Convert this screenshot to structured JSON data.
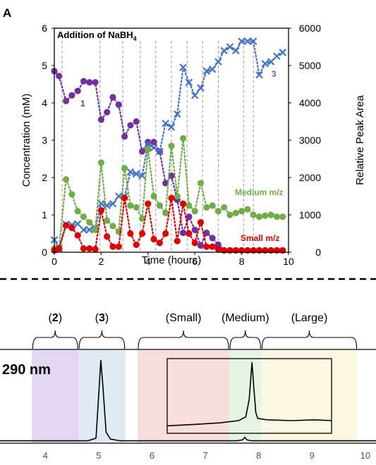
{
  "chart_data": [
    {
      "type": "scatter",
      "panel_label": "A",
      "annotation": "Addition of NaBH",
      "annotation_subscript": "4",
      "xlabel": "Time (hours)",
      "ylabel_left": "Concentration (mM)",
      "ylabel_right": "Relative Peak Area",
      "xlim": [
        0,
        10
      ],
      "ylim_left": [
        0,
        6
      ],
      "ylim_right": [
        0,
        6000
      ],
      "x_ticks": [
        "0",
        "2",
        "4",
        "6",
        "8",
        "10"
      ],
      "y_left_ticks": [
        "0",
        "1",
        "2",
        "3",
        "4",
        "5",
        "6"
      ],
      "y_right_ticks": [
        "0",
        "1000",
        "2000",
        "3000",
        "4000",
        "5000",
        "6000"
      ],
      "additions_x": [
        0.33,
        1.95,
        2.92,
        3.67,
        4.33,
        5.0,
        5.67,
        6.33,
        7.0,
        8.08,
        8.5
      ],
      "series": [
        {
          "label": "1",
          "axis": "left",
          "marker": "circle",
          "color": "#7030A0",
          "x": [
            0,
            0.2,
            0.5,
            0.75,
            1.0,
            1.25,
            1.5,
            1.75,
            2.0,
            2.25,
            2.5,
            2.75,
            3.0,
            3.25,
            3.5,
            3.75,
            4.0,
            4.25,
            4.5,
            4.75,
            5.0,
            5.25,
            5.5,
            5.75,
            6.0,
            6.25,
            6.5,
            6.75,
            7.0,
            7.25,
            7.5,
            7.75,
            8.0,
            8.25,
            8.5,
            8.75,
            9.0,
            9.25,
            9.5,
            9.75
          ],
          "y": [
            4.85,
            4.72,
            4.05,
            4.2,
            4.32,
            4.58,
            4.55,
            4.55,
            3.55,
            3.75,
            4.15,
            3.95,
            3.1,
            3.4,
            3.5,
            2.7,
            2.95,
            2.95,
            2.7,
            1.85,
            2.05,
            1.4,
            0.52,
            0.95,
            0.6,
            0.18,
            0.52,
            0.38,
            0.2,
            0.05,
            0.05,
            0.05,
            0.05,
            0.05,
            0.05,
            0.05,
            0.05,
            0.05,
            0.05,
            0.05
          ]
        },
        {
          "label": "3",
          "axis": "right",
          "marker": "x",
          "color": "#4472C4",
          "x": [
            0,
            0.2,
            0.5,
            0.75,
            1.0,
            1.25,
            1.5,
            1.75,
            2.0,
            2.25,
            2.5,
            2.75,
            3.0,
            3.25,
            3.5,
            3.75,
            4.0,
            4.25,
            4.5,
            4.75,
            5.0,
            5.25,
            5.5,
            5.75,
            6.0,
            6.25,
            6.5,
            6.75,
            7.0,
            7.25,
            7.5,
            7.75,
            8.0,
            8.25,
            8.5,
            8.75,
            9.0,
            9.25,
            9.5,
            9.75
          ],
          "y": [
            330,
            100,
            750,
            730,
            760,
            600,
            600,
            650,
            1300,
            1250,
            1300,
            1500,
            1500,
            2150,
            2100,
            2050,
            2900,
            2800,
            2700,
            3450,
            3350,
            3700,
            4950,
            4550,
            4200,
            4400,
            4850,
            4900,
            5100,
            5400,
            5500,
            5400,
            5650,
            5650,
            5650,
            4750,
            5050,
            5100,
            5250,
            5350
          ]
        },
        {
          "label": "Medium m/z",
          "axis": "left",
          "marker": "circle",
          "color": "#70AD47",
          "x": [
            0,
            0.2,
            0.5,
            0.75,
            1.0,
            1.25,
            1.5,
            1.75,
            2.0,
            2.25,
            2.5,
            2.75,
            3.0,
            3.25,
            3.5,
            3.75,
            4.0,
            4.25,
            4.5,
            4.75,
            5.0,
            5.25,
            5.5,
            5.75,
            6.0,
            6.25,
            6.5,
            6.75,
            7.0,
            7.25,
            7.5,
            7.75,
            8.0,
            8.25,
            8.5,
            8.75,
            9.0,
            9.25,
            9.5,
            9.75
          ],
          "y": [
            0.1,
            0.12,
            1.95,
            1.55,
            1.1,
            0.95,
            0.8,
            0.6,
            2.4,
            0.85,
            0.7,
            0.55,
            2.25,
            1.25,
            1.2,
            0.9,
            2.75,
            1.5,
            1.25,
            1.05,
            2.85,
            1.5,
            3.05,
            1.25,
            1.1,
            1.85,
            1.2,
            1.25,
            1.1,
            1.2,
            1.0,
            1.05,
            1.1,
            1.15,
            1.0,
            0.95,
            0.98,
            1.0,
            0.95,
            0.95
          ]
        },
        {
          "label": "Small m/z",
          "axis": "left",
          "marker": "circle",
          "color": "#E00000",
          "x": [
            0,
            0.2,
            0.5,
            0.75,
            1.0,
            1.25,
            1.5,
            1.75,
            2.0,
            2.25,
            2.5,
            2.75,
            3.0,
            3.25,
            3.5,
            3.75,
            4.0,
            4.25,
            4.5,
            4.75,
            5.0,
            5.25,
            5.5,
            5.75,
            6.0,
            6.25,
            6.5,
            6.75,
            7.0,
            7.25,
            7.5,
            7.75,
            8.0,
            8.25,
            8.5,
            8.75,
            9.0,
            9.25,
            9.5,
            9.75
          ],
          "y": [
            0.05,
            0.1,
            0.72,
            0.65,
            0.45,
            0.1,
            0.1,
            0.08,
            1.12,
            0.42,
            0.15,
            0.15,
            1.45,
            0.5,
            0.2,
            0.5,
            1.3,
            0.35,
            0.25,
            0.5,
            1.45,
            0.3,
            1.3,
            0.5,
            0.25,
            0.8,
            0.15,
            0.15,
            0.08,
            0.05,
            0.05,
            0.05,
            0.05,
            0.05,
            0.05,
            0.05,
            0.05,
            0.05,
            0.05,
            0.05
          ]
        }
      ]
    },
    {
      "type": "line",
      "title": "290 nm",
      "x_ticks": [
        "4",
        "5",
        "6",
        "7",
        "8",
        "9",
        "10"
      ],
      "xlim": [
        3.15,
        10.2
      ],
      "ylim": [
        0,
        1
      ],
      "regions": [
        {
          "label_num": "2",
          "label_text": "",
          "x_from": 3.75,
          "x_to": 4.62,
          "color": "#D9C8EC"
        },
        {
          "label_num": "3",
          "label_text": "",
          "x_from": 4.62,
          "x_to": 5.5,
          "color": "#D4E3F2"
        },
        {
          "label_num": "",
          "label_text": "(Small)",
          "x_from": 5.73,
          "x_to": 7.45,
          "color": "#F6D2D2"
        },
        {
          "label_num": "",
          "label_text": "(Medium)",
          "x_from": 7.45,
          "x_to": 8.05,
          "color": "#DDF0DB"
        },
        {
          "label_num": "",
          "label_text": "(Large)",
          "x_from": 8.05,
          "x_to": 9.85,
          "color": "#FAF4D8"
        }
      ],
      "trace": {
        "x": [
          3.15,
          4.8,
          4.95,
          5.0,
          5.04,
          5.08,
          5.14,
          5.22,
          5.4,
          7.6,
          7.7,
          7.74,
          7.78,
          7.86,
          10.2
        ],
        "y": [
          0.02,
          0.02,
          0.05,
          0.55,
          0.96,
          0.65,
          0.12,
          0.04,
          0.02,
          0.02,
          0.03,
          0.06,
          0.03,
          0.02,
          0.02
        ]
      },
      "inset_trace": {
        "x": [
          5.9,
          6.5,
          7.0,
          7.4,
          7.55,
          7.62,
          7.68,
          7.72,
          7.76,
          7.8,
          7.9,
          8.0,
          8.5,
          9.0,
          9.35
        ],
        "y": [
          0.1,
          0.12,
          0.14,
          0.17,
          0.22,
          0.45,
          0.95,
          0.6,
          0.28,
          0.2,
          0.19,
          0.18,
          0.17,
          0.18,
          0.17
        ]
      }
    }
  ]
}
